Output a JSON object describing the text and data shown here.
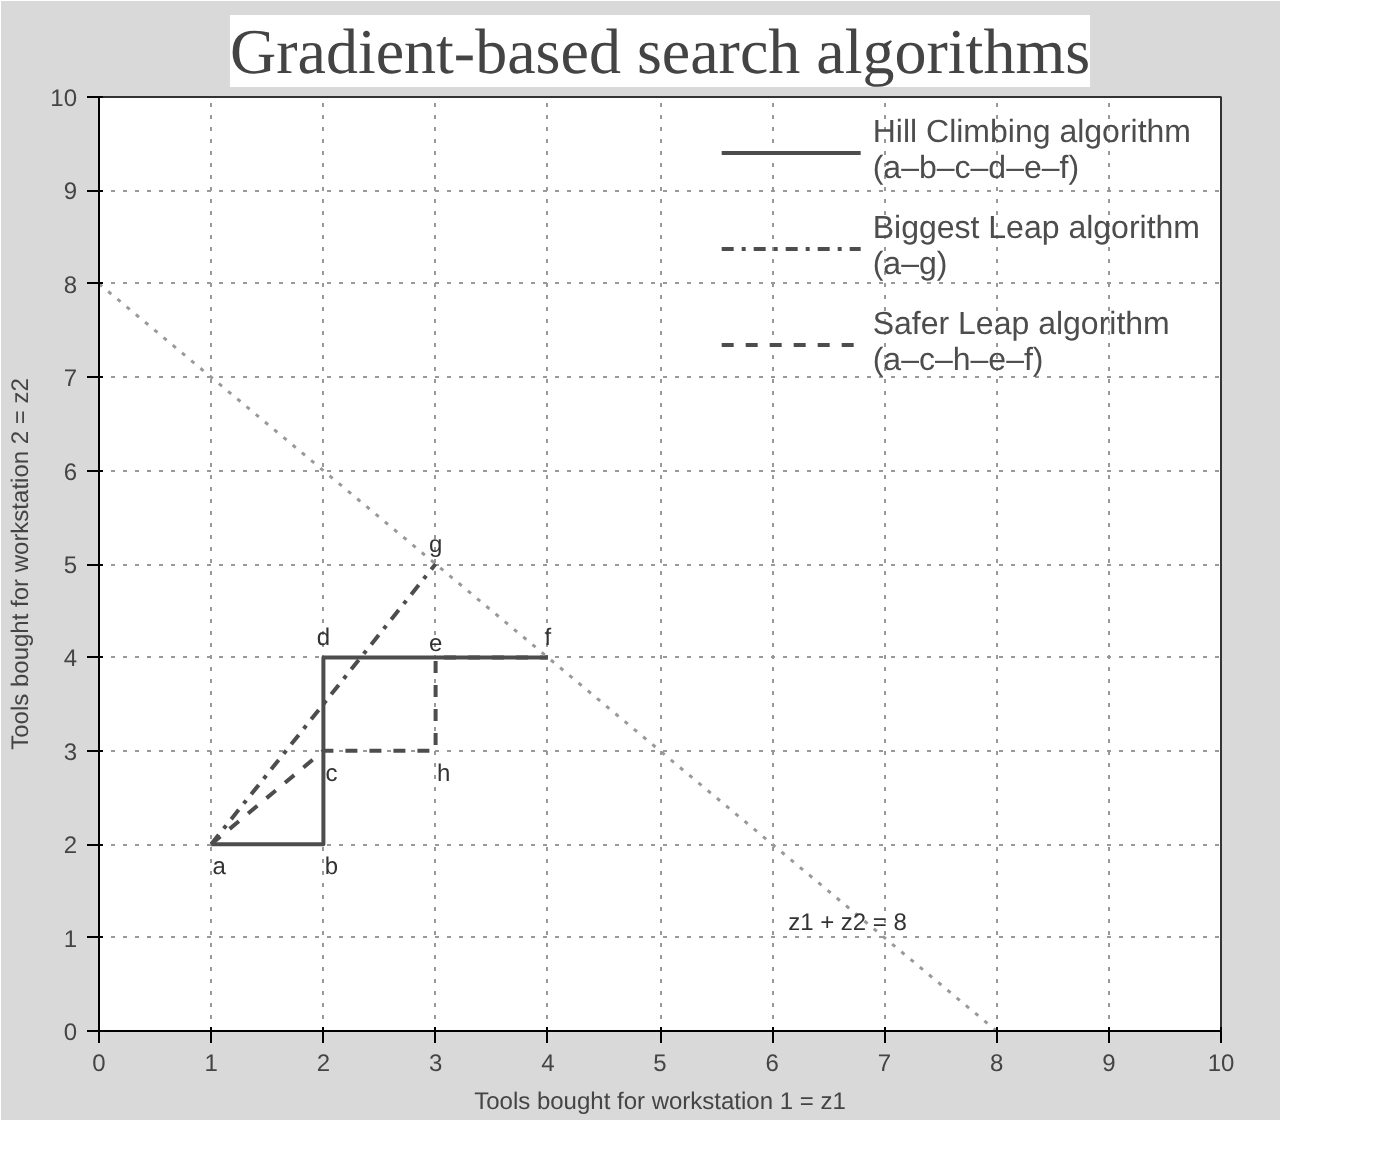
{
  "chart_data": {
    "type": "line",
    "title": "Gradient-based search algorithms",
    "xlabel": "Tools bought for workstation 1 = z1",
    "ylabel": "Tools bought for workstation 2 = z2",
    "series": [
      {
        "name": "Hill Climbing algorithm\n(a–b–c–d–e–f)",
        "color": "#4d4d4d",
        "line_style": "solid",
        "x": [
          1,
          2,
          2,
          2,
          3,
          4
        ],
        "values": [
          2,
          2,
          3,
          4,
          4,
          4
        ]
      },
      {
        "name": "Biggest Leap algorithm\n(a–g)",
        "color": "#4d4d4d",
        "line_style": "dashdot",
        "x": [
          1,
          3
        ],
        "values": [
          2,
          5
        ]
      },
      {
        "name": "Safer Leap algorithm\n(a–c–h–e–f)",
        "color": "#4d4d4d",
        "line_style": "dashed",
        "x": [
          1,
          2,
          3,
          3,
          4
        ],
        "values": [
          2,
          3,
          3,
          4,
          4
        ]
      },
      {
        "color": "#999999",
        "line_style": "dotted",
        "x": [
          0,
          8
        ],
        "values": [
          8,
          0
        ]
      }
    ],
    "annotations": [
      {
        "text": "a",
        "x": 1,
        "y": 2
      },
      {
        "text": "b",
        "x": 2,
        "y": 2
      },
      {
        "text": "c",
        "x": 2,
        "y": 3
      },
      {
        "text": "d",
        "x": 2,
        "y": 4
      },
      {
        "text": "e",
        "x": 3,
        "y": 4
      },
      {
        "text": "f",
        "x": 4,
        "y": 4
      },
      {
        "text": "g",
        "x": 3,
        "y": 5
      },
      {
        "text": "h",
        "x": 3,
        "y": 3
      },
      {
        "text": "z1 + z2 = 8",
        "x": 6.6,
        "y": 1.4
      }
    ],
    "xlim": [
      0,
      10
    ],
    "ylim": [
      0,
      10
    ],
    "xticks": [
      0,
      1,
      2,
      3,
      4,
      5,
      6,
      7,
      8,
      9,
      10
    ],
    "yticks": [
      0,
      1,
      2,
      3,
      4,
      5,
      6,
      7,
      8,
      9,
      10
    ],
    "grid": true,
    "legend": "top right"
  }
}
